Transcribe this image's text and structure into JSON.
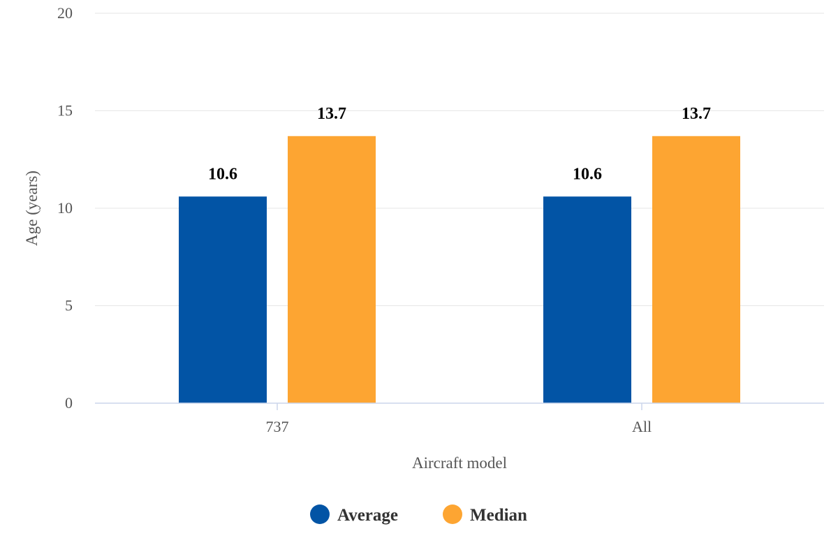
{
  "chart_data": {
    "type": "bar",
    "categories": [
      "737",
      "All"
    ],
    "series": [
      {
        "name": "Average",
        "values": [
          10.6,
          10.6
        ],
        "color": "#0254a5"
      },
      {
        "name": "Median",
        "values": [
          13.7,
          13.7
        ],
        "color": "#fda532"
      }
    ],
    "title": "",
    "xlabel": "Aircraft model",
    "ylabel": "Age (years)",
    "ylim": [
      0,
      20
    ],
    "yticks": [
      0,
      5,
      10,
      15,
      20
    ],
    "data_label_precision": 1,
    "grid": true,
    "legend_position": "bottom-center",
    "colors": {
      "gridline": "#e6e6e6",
      "axis_line": "#ccd6eb",
      "tick_text": "#555555",
      "data_label": "#000000",
      "legend_text": "#333333"
    }
  }
}
